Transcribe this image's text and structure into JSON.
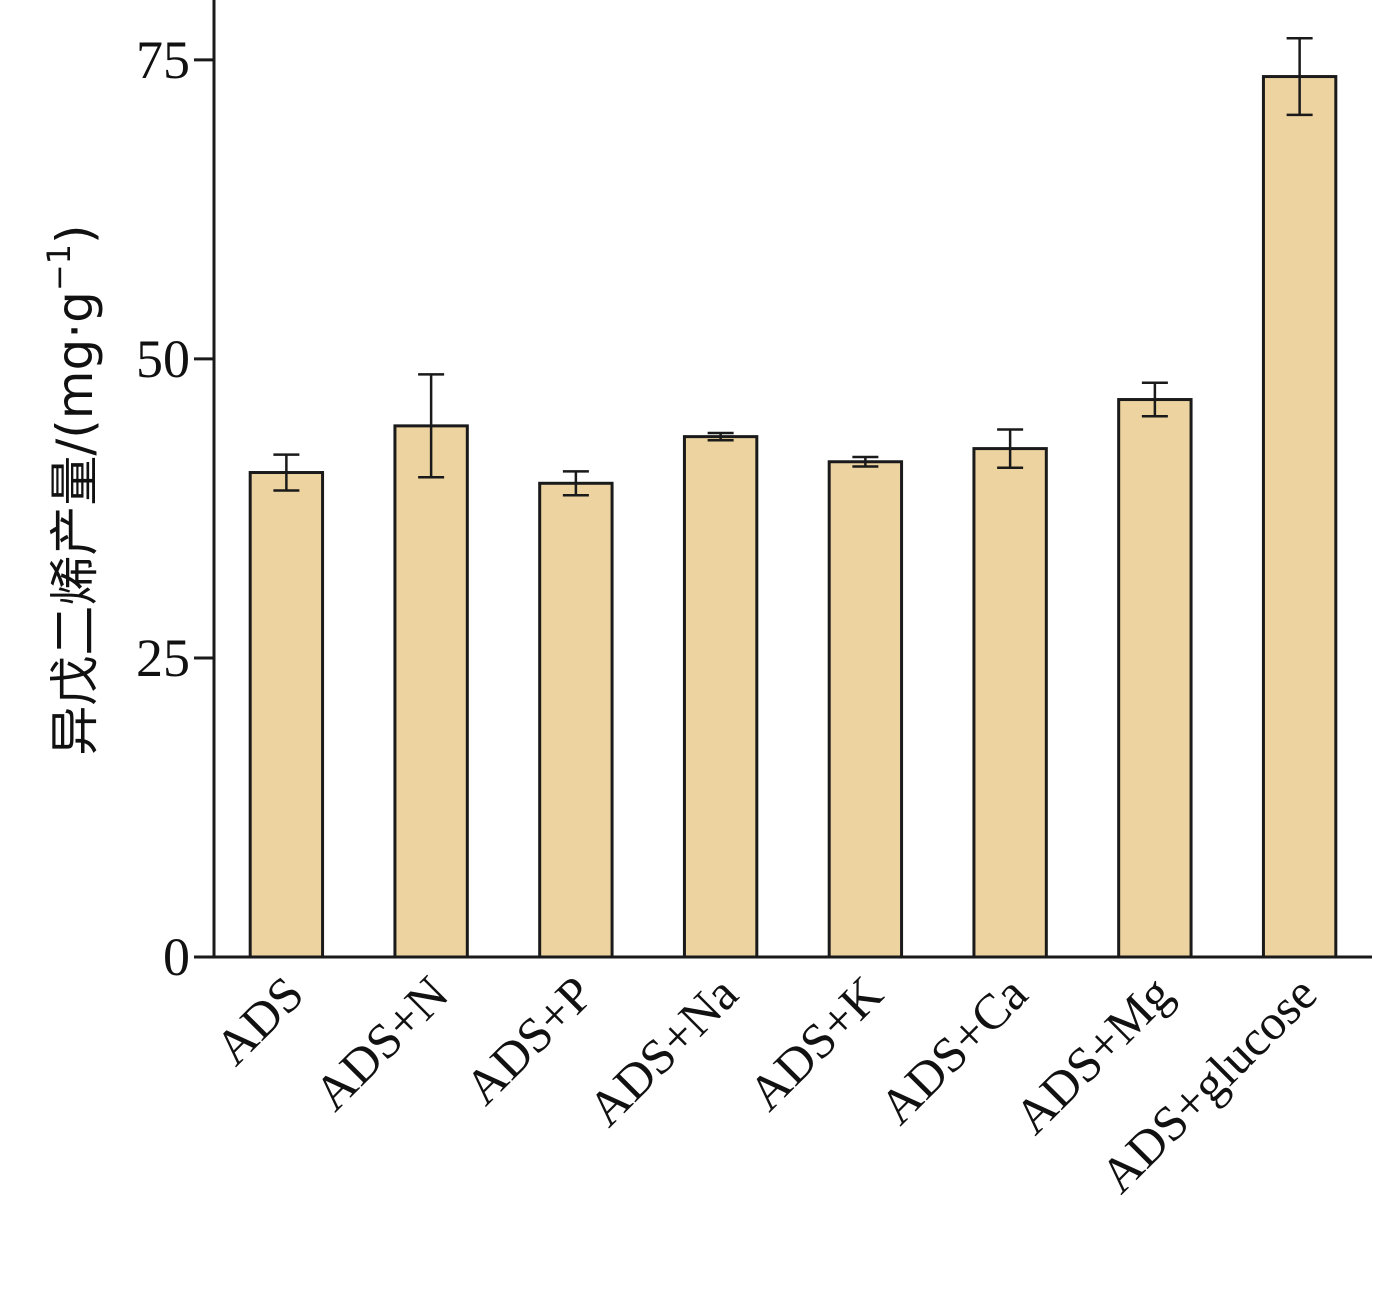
{
  "chart_data": {
    "type": "bar",
    "title": "",
    "xlabel": "",
    "ylabel_text": "异戊二烯产量/(mg·g",
    "ylabel_sup": "−1",
    "ylabel_close": ")",
    "categories": [
      "ADS",
      "ADS+N",
      "ADS+P",
      "ADS+Na",
      "ADS+K",
      "ADS+Ca",
      "ADS+Mg",
      "ADS+glucose"
    ],
    "values": [
      40.5,
      44.4,
      39.6,
      43.5,
      41.4,
      42.5,
      46.6,
      73.6
    ],
    "errors": [
      1.5,
      4.3,
      1.0,
      0.3,
      0.4,
      1.6,
      1.4,
      3.2
    ],
    "ylim": [
      0,
      80
    ],
    "yticks": [
      0,
      25,
      50,
      75
    ],
    "ytick_labels": [
      "0",
      "25",
      "50",
      "75"
    ],
    "grid": false,
    "bar_color": "#edd3a0",
    "edge_color": "#1a1a1a"
  }
}
